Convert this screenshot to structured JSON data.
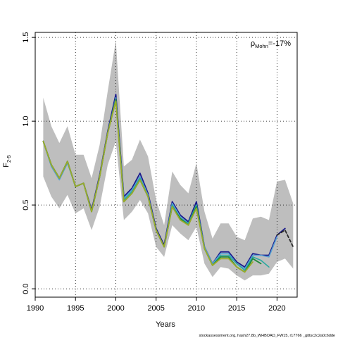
{
  "chart_data": {
    "type": "line",
    "title": "",
    "xlabel": "Years",
    "ylabel_main": "F",
    "ylabel_sub": "2-5",
    "xlim": [
      1990,
      2022.5
    ],
    "ylim": [
      -0.05,
      1.53
    ],
    "x_ticks": [
      1990,
      1995,
      2000,
      2005,
      2010,
      2015,
      2020
    ],
    "y_ticks": [
      0.0,
      0.5,
      1.0,
      1.5
    ],
    "y_tick_labels": [
      "0.0",
      "0.5",
      "1.0",
      "1.5"
    ],
    "grid": true,
    "annotation": {
      "rho": "ρ",
      "sub": "Mohn",
      "value": "=-17%"
    },
    "footer": "stockassessment.org, hash27.8b_WHBOAD_FW15, r17766 _gittsc2c2a0c6dde",
    "colors": {
      "band": "#bebebe",
      "grid": "#000000",
      "axis": "#000000"
    },
    "confidence_band": {
      "x": [
        1991,
        1992,
        1993,
        1994,
        1995,
        1996,
        1997,
        1998,
        1999,
        2000,
        2001,
        2002,
        2003,
        2004,
        2005,
        2006,
        2007,
        2008,
        2009,
        2010,
        2011,
        2012,
        2013,
        2014,
        2015,
        2016,
        2017,
        2018,
        2019,
        2020,
        2021,
        2022
      ],
      "upper": [
        1.14,
        0.97,
        0.87,
        0.97,
        0.8,
        0.8,
        0.66,
        0.86,
        1.18,
        1.48,
        0.73,
        0.77,
        0.89,
        0.79,
        0.53,
        0.38,
        0.7,
        0.62,
        0.57,
        0.75,
        0.46,
        0.3,
        0.39,
        0.39,
        0.31,
        0.29,
        0.42,
        0.43,
        0.41,
        0.64,
        0.65,
        0.51
      ],
      "lower": [
        0.67,
        0.55,
        0.48,
        0.56,
        0.45,
        0.48,
        0.35,
        0.49,
        0.74,
        0.88,
        0.41,
        0.46,
        0.53,
        0.45,
        0.25,
        0.19,
        0.38,
        0.33,
        0.29,
        0.37,
        0.15,
        0.07,
        0.13,
        0.12,
        0.08,
        0.05,
        0.08,
        0.08,
        0.09,
        0.16,
        0.18,
        0.12
      ]
    },
    "series": [
      {
        "color": "#1a1a8c",
        "width": 1.8,
        "dash": "",
        "x": [
          1991,
          1992,
          1993,
          1994,
          1995,
          1996,
          1997,
          1998,
          1999,
          2000,
          2001,
          2002,
          2003,
          2004,
          2005,
          2006,
          2007,
          2008,
          2009,
          2010,
          2011,
          2012,
          2013,
          2014,
          2015,
          2016,
          2017,
          2018,
          2019,
          2020,
          2021
        ],
        "values": [
          0.88,
          0.74,
          0.66,
          0.76,
          0.61,
          0.63,
          0.47,
          0.68,
          0.94,
          1.16,
          0.55,
          0.6,
          0.69,
          0.57,
          0.36,
          0.26,
          0.52,
          0.44,
          0.4,
          0.52,
          0.25,
          0.15,
          0.22,
          0.22,
          0.16,
          0.13,
          0.21,
          0.2,
          0.2,
          0.32,
          0.36
        ]
      },
      {
        "color": "#2a2a2a",
        "width": 1.8,
        "dash": "4,3",
        "x": [
          2020,
          2021,
          2022
        ],
        "values": [
          0.32,
          0.35,
          0.25
        ]
      },
      {
        "color": "#56a0d3",
        "width": 1.6,
        "dash": "",
        "x": [
          1991,
          1992,
          1993,
          1994,
          1995,
          1996,
          1997,
          1998,
          1999,
          2000,
          2001,
          2002,
          2003,
          2004,
          2005,
          2006,
          2007,
          2008,
          2009,
          2010,
          2011,
          2012,
          2013,
          2014,
          2015,
          2016,
          2017,
          2018,
          2019,
          2020
        ],
        "values": [
          0.88,
          0.73,
          0.65,
          0.75,
          0.61,
          0.63,
          0.46,
          0.67,
          0.93,
          1.14,
          0.54,
          0.59,
          0.67,
          0.56,
          0.35,
          0.25,
          0.51,
          0.43,
          0.39,
          0.5,
          0.25,
          0.15,
          0.21,
          0.21,
          0.15,
          0.12,
          0.2,
          0.2,
          0.19,
          0.31
        ]
      },
      {
        "color": "#2aa8a0",
        "width": 1.6,
        "dash": "",
        "x": [
          1991,
          1992,
          1993,
          1994,
          1995,
          1996,
          1997,
          1998,
          1999,
          2000,
          2001,
          2002,
          2003,
          2004,
          2005,
          2006,
          2007,
          2008,
          2009,
          2010,
          2011,
          2012,
          2013,
          2014,
          2015,
          2016,
          2017,
          2018,
          2019
        ],
        "values": [
          0.88,
          0.74,
          0.66,
          0.76,
          0.61,
          0.63,
          0.46,
          0.67,
          0.93,
          1.13,
          0.53,
          0.58,
          0.66,
          0.55,
          0.35,
          0.25,
          0.5,
          0.42,
          0.39,
          0.5,
          0.24,
          0.14,
          0.2,
          0.2,
          0.15,
          0.11,
          0.19,
          0.17,
          0.13
        ]
      },
      {
        "color": "#1e8a3a",
        "width": 1.8,
        "dash": "",
        "x": [
          1991,
          1992,
          1993,
          1994,
          1995,
          1996,
          1997,
          1998,
          1999,
          2000,
          2001,
          2002,
          2003,
          2004,
          2005,
          2006,
          2007,
          2008,
          2009,
          2010,
          2011,
          2012,
          2013,
          2014,
          2015,
          2016,
          2017,
          2018
        ],
        "values": [
          0.88,
          0.74,
          0.66,
          0.76,
          0.61,
          0.63,
          0.46,
          0.67,
          0.93,
          1.13,
          0.52,
          0.57,
          0.65,
          0.55,
          0.35,
          0.25,
          0.49,
          0.42,
          0.38,
          0.49,
          0.24,
          0.14,
          0.19,
          0.19,
          0.13,
          0.1,
          0.18,
          0.15
        ]
      },
      {
        "color": "#9aab2a",
        "width": 1.8,
        "dash": "",
        "x": [
          1991,
          1992,
          1993,
          1994,
          1995,
          1996,
          1997,
          1998,
          1999,
          2000,
          2001,
          2002,
          2003,
          2004,
          2005,
          2006,
          2007,
          2008,
          2009,
          2010,
          2011,
          2012,
          2013,
          2014,
          2015,
          2016,
          2017
        ],
        "values": [
          0.88,
          0.74,
          0.66,
          0.76,
          0.61,
          0.63,
          0.46,
          0.67,
          0.93,
          1.12,
          0.52,
          0.57,
          0.65,
          0.55,
          0.35,
          0.25,
          0.49,
          0.41,
          0.38,
          0.48,
          0.24,
          0.14,
          0.18,
          0.18,
          0.13,
          0.1,
          0.16
        ]
      }
    ]
  }
}
